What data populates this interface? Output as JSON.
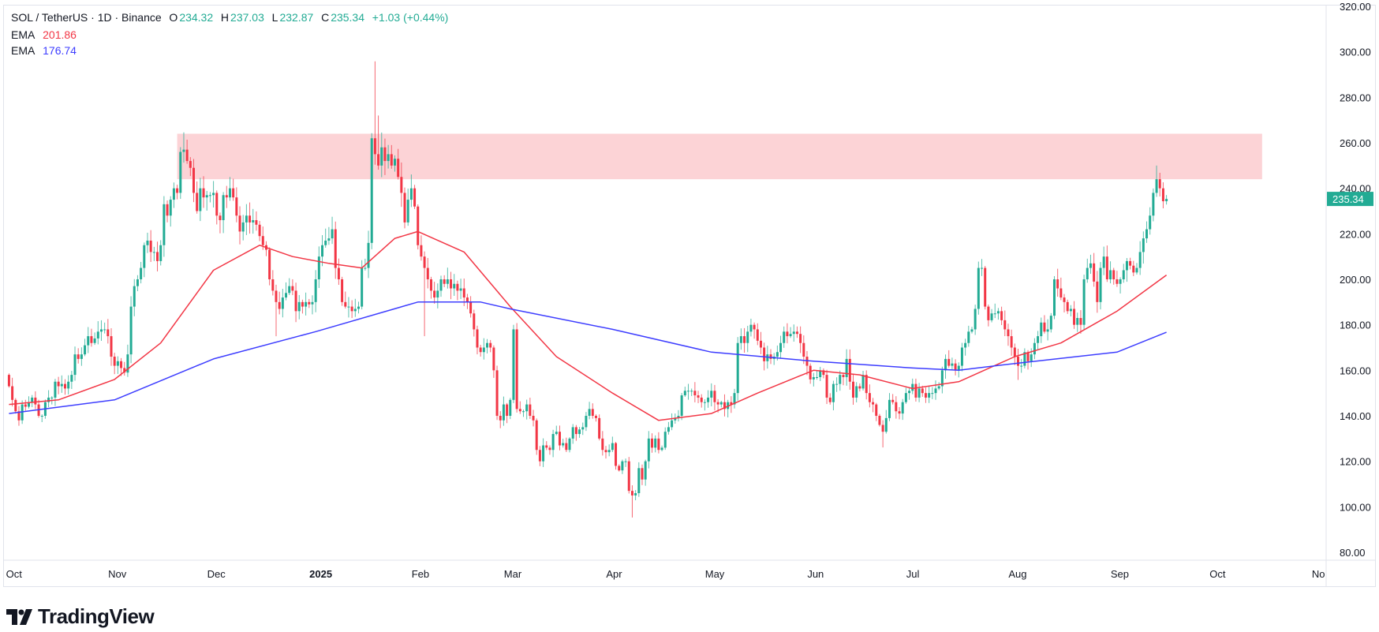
{
  "header": {
    "symbol": "SOL / TetherUS · 1D · Binance",
    "open_label": "O",
    "open": "234.32",
    "high_label": "H",
    "high": "237.03",
    "low_label": "L",
    "low": "232.87",
    "close_label": "C",
    "close": "235.34",
    "change": "+1.03 (+0.44%)"
  },
  "indicators": [
    {
      "label": "EMA",
      "value": "201.86",
      "color": "#f23645"
    },
    {
      "label": "EMA",
      "value": "176.74",
      "color": "#3d3dff"
    }
  ],
  "brand": "TradingView",
  "chart_data": {
    "type": "candlestick",
    "title": "",
    "ylim": [
      80,
      320
    ],
    "y_ticks": [
      "80.00",
      "100.00",
      "120.00",
      "140.00",
      "160.00",
      "180.00",
      "200.00",
      "220.00",
      "240.00",
      "260.00",
      "280.00",
      "300.00",
      "320.00"
    ],
    "x_ticks": [
      {
        "label": "Oct",
        "date": "2024-10-01"
      },
      {
        "label": "Nov",
        "date": "2024-11-01"
      },
      {
        "label": "Dec",
        "date": "2024-12-01"
      },
      {
        "label": "2025",
        "date": "2025-01-01",
        "bold": true
      },
      {
        "label": "Feb",
        "date": "2025-02-01"
      },
      {
        "label": "Mar",
        "date": "2025-03-01"
      },
      {
        "label": "Apr",
        "date": "2025-04-01"
      },
      {
        "label": "May",
        "date": "2025-05-01"
      },
      {
        "label": "Jun",
        "date": "2025-06-01"
      },
      {
        "label": "Jul",
        "date": "2025-07-01"
      },
      {
        "label": "Aug",
        "date": "2025-08-01"
      },
      {
        "label": "Sep",
        "date": "2025-09-01"
      },
      {
        "label": "Oct",
        "date": "2025-10-01"
      },
      {
        "label": "No",
        "date": "2025-11-01"
      }
    ],
    "last_price_label": "235.34",
    "colors": {
      "up": "#22ab94",
      "down": "#f23645",
      "zone": "#fcd3d6",
      "ema_fast": "#f23645",
      "ema_slow": "#3d3dff",
      "last_price_bg": "#22ab94"
    },
    "first_date": "2024-09-30",
    "first_open": 158,
    "closes": [
      153,
      147,
      142,
      138,
      145,
      144,
      146,
      148,
      145,
      140,
      140,
      146,
      148,
      148,
      155,
      153,
      154,
      152,
      155,
      158,
      167,
      165,
      167,
      171,
      175,
      172,
      174,
      177,
      178,
      178,
      175,
      166,
      162,
      164,
      161,
      159,
      167,
      188,
      197,
      200,
      205,
      215,
      217,
      212,
      212,
      208,
      215,
      233,
      228,
      235,
      240,
      238,
      256,
      257,
      252,
      249,
      238,
      230,
      240,
      236,
      237,
      237,
      238,
      228,
      226,
      237,
      236,
      240,
      236,
      228,
      221,
      225,
      228,
      225,
      226,
      224,
      219,
      215,
      213,
      200,
      195,
      190,
      187,
      192,
      194,
      197,
      195,
      186,
      190,
      188,
      190,
      189,
      190,
      200,
      210,
      215,
      217,
      218,
      222,
      205,
      200,
      190,
      188,
      188,
      186,
      187,
      188,
      205,
      205,
      216,
      262,
      255,
      250,
      258,
      252,
      255,
      250,
      253,
      245,
      238,
      225,
      235,
      240,
      232,
      215,
      210,
      205,
      200,
      195,
      192,
      195,
      200,
      198,
      200,
      196,
      198,
      195,
      196,
      192,
      190,
      185,
      178,
      170,
      168,
      170,
      172,
      170,
      160,
      140,
      138,
      145,
      140,
      147,
      178,
      143,
      142,
      142,
      145,
      140,
      138,
      125,
      120,
      127,
      126,
      125,
      132,
      133,
      127,
      128,
      125,
      130,
      135,
      132,
      134,
      135,
      140,
      143,
      140,
      139,
      130,
      125,
      124,
      125,
      128,
      118,
      116,
      120,
      120,
      107,
      105,
      106,
      117,
      112,
      120,
      130,
      126,
      130,
      125,
      126,
      133,
      135,
      138,
      139,
      140,
      149,
      151,
      151,
      151,
      149,
      148,
      146,
      146,
      148,
      151,
      146,
      145,
      146,
      143,
      146,
      145,
      150,
      172,
      175,
      172,
      177,
      180,
      178,
      173,
      170,
      164,
      167,
      165,
      166,
      168,
      172,
      177,
      175,
      176,
      177,
      176,
      172,
      166,
      162,
      156,
      157,
      157,
      160,
      158,
      148,
      146,
      154,
      154,
      158,
      157,
      165,
      155,
      148,
      153,
      152,
      158,
      150,
      146,
      145,
      140,
      136,
      133,
      139,
      147,
      146,
      142,
      141,
      146,
      150,
      151,
      154,
      148,
      152,
      150,
      148,
      150,
      150,
      152,
      153,
      160,
      165,
      162,
      163,
      160,
      162,
      170,
      172,
      177,
      178,
      187,
      205,
      205,
      188,
      182,
      185,
      185,
      186,
      182,
      178,
      175,
      170,
      166,
      162,
      162,
      168,
      164,
      167,
      172,
      175,
      181,
      177,
      178,
      184,
      200,
      196,
      192,
      190,
      186,
      187,
      180,
      183,
      180,
      200,
      205,
      207,
      199,
      190,
      205,
      210,
      200,
      204,
      200,
      198,
      200,
      204,
      208,
      206,
      203,
      205,
      212,
      218,
      222,
      228,
      238,
      244,
      240,
      234.32,
      235.34
    ],
    "last_candle": {
      "open": 234.32,
      "high": 237.03,
      "low": 232.87,
      "close": 235.34
    },
    "extreme_wicks": [
      {
        "date": "2024-11-22",
        "high": 264.6
      },
      {
        "date": "2025-01-19",
        "high": 295.8
      },
      {
        "date": "2025-01-20",
        "high": 272
      },
      {
        "date": "2025-02-03",
        "low": 175
      },
      {
        "date": "2025-03-02",
        "high": 180
      },
      {
        "date": "2025-04-07",
        "low": 95.3
      },
      {
        "date": "2025-06-22",
        "low": 126.1
      },
      {
        "date": "2024-12-20",
        "low": 175
      },
      {
        "date": "2025-08-02",
        "low": 155.8
      },
      {
        "date": "2025-09-13",
        "high": 250
      }
    ],
    "resistance_zone": {
      "from_date": "2024-11-20",
      "to_date": "2025-10-15",
      "low": 244,
      "high": 264
    },
    "ema_fast": [
      [
        "2024-09-30",
        145
      ],
      [
        "2024-10-15",
        147
      ],
      [
        "2024-11-01",
        156
      ],
      [
        "2024-11-15",
        172
      ],
      [
        "2024-12-01",
        204
      ],
      [
        "2024-12-15",
        215
      ],
      [
        "2024-12-25",
        210
      ],
      [
        "2025-01-05",
        207
      ],
      [
        "2025-01-15",
        205
      ],
      [
        "2025-01-25",
        218
      ],
      [
        "2025-02-01",
        221
      ],
      [
        "2025-02-15",
        212
      ],
      [
        "2025-03-01",
        188
      ],
      [
        "2025-03-15",
        166
      ],
      [
        "2025-04-01",
        150
      ],
      [
        "2025-04-15",
        138
      ],
      [
        "2025-05-01",
        141
      ],
      [
        "2025-05-15",
        150
      ],
      [
        "2025-06-01",
        160
      ],
      [
        "2025-06-15",
        158
      ],
      [
        "2025-07-01",
        152
      ],
      [
        "2025-07-15",
        155
      ],
      [
        "2025-08-01",
        166
      ],
      [
        "2025-08-15",
        172
      ],
      [
        "2025-09-01",
        186
      ],
      [
        "2025-09-16",
        201.86
      ]
    ],
    "ema_slow": [
      [
        "2024-09-30",
        141
      ],
      [
        "2024-11-01",
        147
      ],
      [
        "2024-12-01",
        165
      ],
      [
        "2025-01-01",
        177
      ],
      [
        "2025-02-01",
        190
      ],
      [
        "2025-02-20",
        190
      ],
      [
        "2025-03-01",
        187
      ],
      [
        "2025-04-01",
        178
      ],
      [
        "2025-05-01",
        168
      ],
      [
        "2025-06-01",
        164
      ],
      [
        "2025-07-01",
        161
      ],
      [
        "2025-07-15",
        160
      ],
      [
        "2025-08-01",
        163
      ],
      [
        "2025-09-01",
        168
      ],
      [
        "2025-09-16",
        176.74
      ]
    ]
  }
}
